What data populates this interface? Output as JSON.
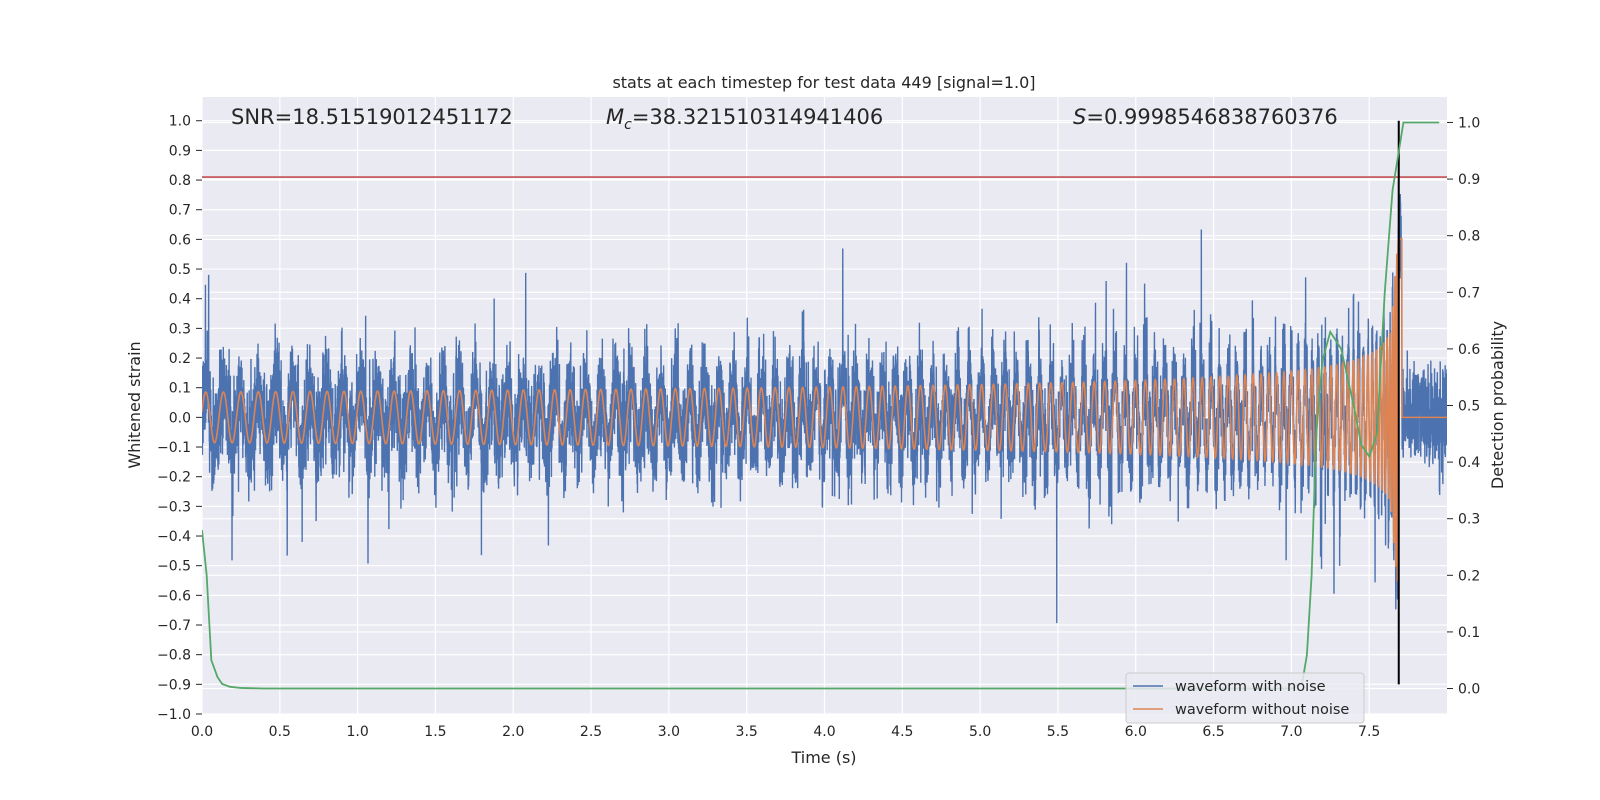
{
  "chart_data": {
    "type": "line",
    "title": "stats at each timestep for test data 449 [signal=1.0]",
    "xlabel": "Time (s)",
    "ylabel": "Whitened strain",
    "y2label": "Detection probability",
    "xlim": [
      0.0,
      8.0
    ],
    "ylim": [
      -1.0,
      1.08
    ],
    "y2lim": [
      -0.045,
      1.045
    ],
    "xticks": [
      0.0,
      0.5,
      1.0,
      1.5,
      2.0,
      2.5,
      3.0,
      3.5,
      4.0,
      4.5,
      5.0,
      5.5,
      6.0,
      6.5,
      7.0,
      7.5
    ],
    "yticks": [
      1.0,
      0.9,
      0.8,
      0.7,
      0.6,
      0.5,
      0.4,
      0.3,
      0.2,
      0.1,
      0.0,
      -0.1,
      -0.2,
      -0.3,
      -0.4,
      -0.5,
      -0.6,
      -0.7,
      -0.8,
      -0.9,
      -1.0
    ],
    "y2ticks": [
      1.0,
      0.9,
      0.8,
      0.7,
      0.6,
      0.5,
      0.4,
      0.3,
      0.2,
      0.1,
      0.0
    ],
    "annotations": {
      "snr": "SNR=18.51519012451172",
      "mc_label": "M",
      "mc_sub": "c",
      "mc_value": "=38.321510314941406",
      "s_label": "S",
      "s_value": "=0.9998546838760376"
    },
    "threshold_line": {
      "y": 0.81,
      "color": "#c44e52"
    },
    "merger_line": {
      "x": 7.69,
      "color": "#000000"
    },
    "series": [
      {
        "name": "waveform with noise",
        "color": "#4c72b0",
        "noise_model": "whitened gaussian noise, typical extent ±0.25, peaks to ±0.5"
      },
      {
        "name": "waveform without noise",
        "color": "#dd8452",
        "chirp": {
          "amplitude_start": 0.002,
          "amplitude_end": 0.3,
          "merger_time": 7.69,
          "peak_at_merger": 0.65
        }
      },
      {
        "name": "detection probability",
        "axis": "right",
        "color": "#55a868",
        "x": [
          0.0,
          0.03,
          0.06,
          0.1,
          0.13,
          0.18,
          0.25,
          0.4,
          1.0,
          3.0,
          5.0,
          6.5,
          7.0,
          7.07,
          7.1,
          7.13,
          7.16,
          7.2,
          7.25,
          7.32,
          7.4,
          7.45,
          7.5,
          7.55,
          7.6,
          7.65,
          7.72,
          7.8,
          7.9,
          7.95
        ],
        "values": [
          0.28,
          0.2,
          0.05,
          0.02,
          0.008,
          0.003,
          0.001,
          0.0,
          0.0,
          0.0,
          0.0,
          0.0,
          0.0,
          0.01,
          0.06,
          0.2,
          0.45,
          0.58,
          0.63,
          0.6,
          0.5,
          0.43,
          0.41,
          0.45,
          0.7,
          0.88,
          1.0,
          1.0,
          1.0,
          1.0
        ]
      }
    ],
    "legend": {
      "location": "lower-right",
      "entries": [
        "waveform with noise",
        "waveform without noise"
      ]
    }
  }
}
